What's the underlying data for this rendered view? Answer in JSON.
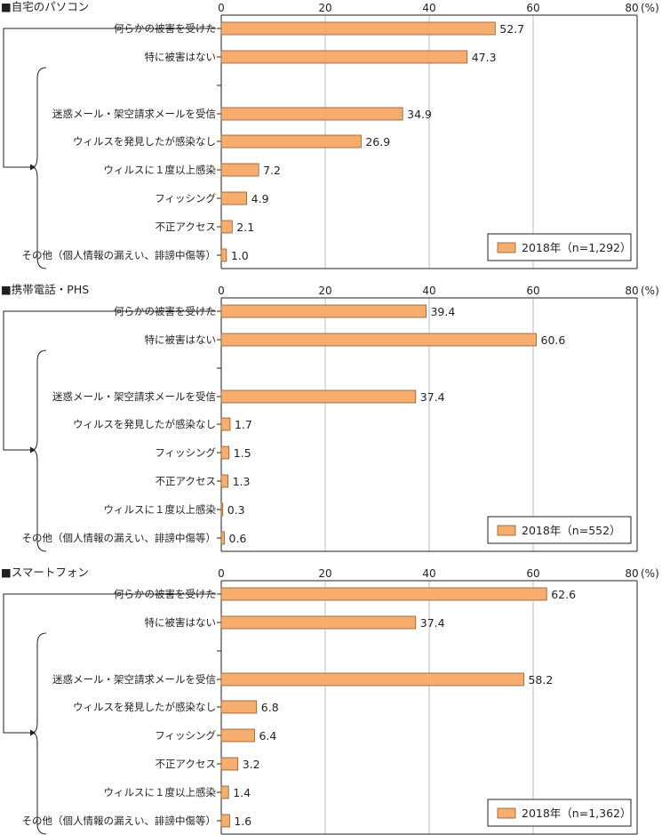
{
  "colors": {
    "bar": "#f6ad6e",
    "bar_stroke": "#8a5a2b",
    "grid": "#bdbdbd",
    "axis": "#231f20",
    "text": "#231f20"
  },
  "chart_data": [
    {
      "type": "bar",
      "title": "■自宅のパソコン",
      "xlim": [
        0,
        80
      ],
      "ticks": [
        "0",
        "20",
        "40",
        "60",
        "80"
      ],
      "unit": "(%)",
      "legend": "2018年（n=1,292）",
      "legend_position": "bottom-right",
      "categories": [
        "何らかの被害を受けた",
        "特に被害はない",
        "迷惑メール・架空請求メールを受信",
        "ウィルスを発見したが感染なし",
        "ウィルスに１度以上感染",
        "フィッシング",
        "不正アクセス",
        "その他（個人情報の漏えい、誹謗中傷等）"
      ],
      "values": [
        52.7,
        47.3,
        34.9,
        26.9,
        7.2,
        4.9,
        2.1,
        1.0
      ],
      "value_labels": [
        "52.7",
        "47.3",
        "34.9",
        "26.9",
        "7.2",
        "4.9",
        "2.1",
        "1.0"
      ]
    },
    {
      "type": "bar",
      "title": "■携帯電話・PHS",
      "xlim": [
        0,
        80
      ],
      "ticks": [
        "0",
        "20",
        "40",
        "60",
        "80"
      ],
      "unit": "(%)",
      "legend": "2018年（n=552）",
      "legend_position": "bottom-right",
      "categories": [
        "何らかの被害を受けた",
        "特に被害はない",
        "迷惑メール・架空請求メールを受信",
        "ウィルスを発見したが感染なし",
        "フィッシング",
        "不正アクセス",
        "ウィルスに１度以上感染",
        "その他（個人情報の漏えい、誹謗中傷等）"
      ],
      "values": [
        39.4,
        60.6,
        37.4,
        1.7,
        1.5,
        1.3,
        0.3,
        0.6
      ],
      "value_labels": [
        "39.4",
        "60.6",
        "37.4",
        "1.7",
        "1.5",
        "1.3",
        "0.3",
        "0.6"
      ]
    },
    {
      "type": "bar",
      "title": "■スマートフォン",
      "xlim": [
        0,
        80
      ],
      "ticks": [
        "0",
        "20",
        "40",
        "60",
        "80"
      ],
      "unit": "(%)",
      "legend": "2018年（n=1,362）",
      "legend_position": "bottom-right",
      "categories": [
        "何らかの被害を受けた",
        "特に被害はない",
        "迷惑メール・架空請求メールを受信",
        "ウィルスを発見したが感染なし",
        "フィッシング",
        "不正アクセス",
        "ウィルスに１度以上感染",
        "その他（個人情報の漏えい、誹謗中傷等）"
      ],
      "values": [
        62.6,
        37.4,
        58.2,
        6.8,
        6.4,
        3.2,
        1.4,
        1.6
      ],
      "value_labels": [
        "62.6",
        "37.4",
        "58.2",
        "6.8",
        "6.4",
        "3.2",
        "1.4",
        "1.6"
      ]
    }
  ]
}
